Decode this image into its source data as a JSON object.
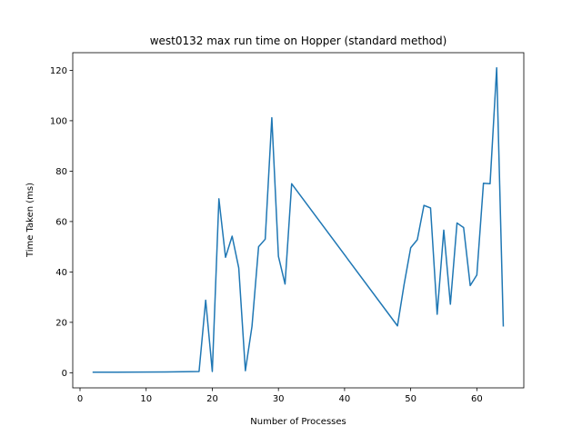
{
  "chart_data": {
    "type": "line",
    "title": "west0132 max run time on Hopper (standard method)",
    "xlabel": "Number of Processes",
    "ylabel": "Time Taken (ms)",
    "xlim": [
      -1.1,
      67.1
    ],
    "ylim": [
      -6.0,
      127.0
    ],
    "xticks": [
      0,
      10,
      20,
      30,
      40,
      50,
      60
    ],
    "yticks": [
      0,
      20,
      40,
      60,
      80,
      100,
      120
    ],
    "grid": false,
    "color": "#1f77b4",
    "series": [
      {
        "x": [
          2,
          13,
          18,
          19,
          20,
          21,
          22,
          23,
          24,
          25,
          26,
          27,
          28,
          29,
          30,
          31,
          32,
          48,
          49,
          50,
          51,
          52,
          53,
          54,
          55,
          56,
          57,
          58,
          59,
          60,
          61,
          62,
          63,
          64
        ],
        "values": [
          0.2,
          0.3,
          0.5,
          28.8,
          0.5,
          69.0,
          45.8,
          54.2,
          41.6,
          0.8,
          18.4,
          50.0,
          53.0,
          101.2,
          46.2,
          35.2,
          75.0,
          18.6,
          35.0,
          49.6,
          52.8,
          66.4,
          65.4,
          23.2,
          56.6,
          27.2,
          59.4,
          57.6,
          34.6,
          38.8,
          75.2,
          75.0,
          121.0,
          18.6
        ]
      }
    ]
  }
}
